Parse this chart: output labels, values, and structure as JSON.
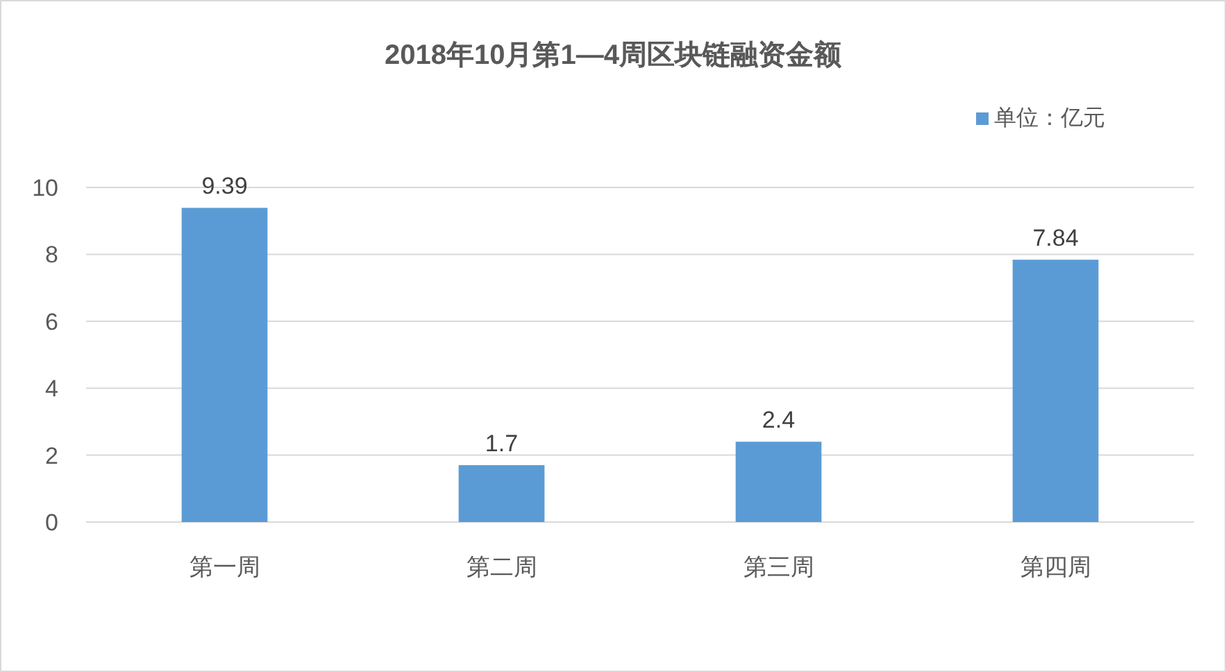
{
  "chart_data": {
    "type": "bar",
    "title": "2018年10月第1—4周区块链融资金额",
    "categories": [
      "第一周",
      "第二周",
      "第三周",
      "第四周"
    ],
    "series": [
      {
        "name": "单位：亿元",
        "color": "#5b9bd5",
        "values": [
          9.39,
          1.7,
          2.4,
          7.84
        ]
      }
    ],
    "ylim": [
      0,
      10
    ],
    "yticks": [
      0,
      2,
      4,
      6,
      8,
      10
    ],
    "grid": "y",
    "legend": "top right",
    "data_labels": true
  }
}
